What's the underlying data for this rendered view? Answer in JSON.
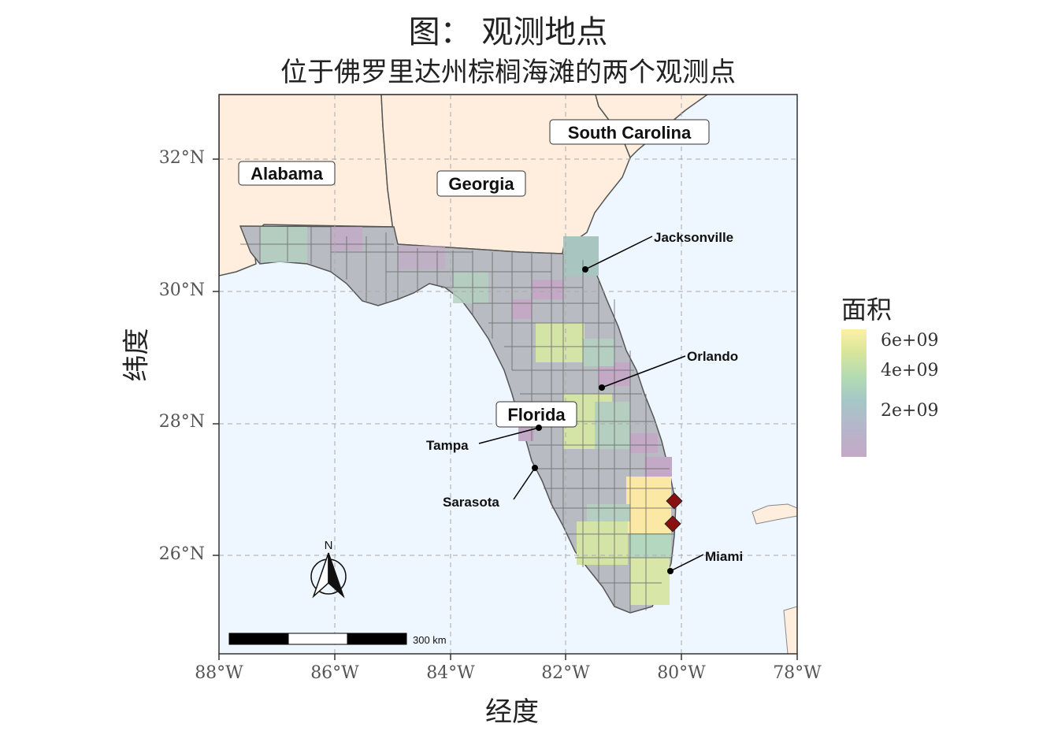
{
  "title": "图：  观测地点",
  "subtitle": "位于佛罗里达州棕榈海滩的两个观测点",
  "axes": {
    "xlabel": "经度",
    "ylabel": "纬度",
    "x_ticks": [
      "88°W",
      "86°W",
      "84°W",
      "82°W",
      "80°W",
      "78°W"
    ],
    "y_ticks": [
      "32°N",
      "30°N",
      "28°N",
      "26°N"
    ]
  },
  "legend": {
    "title": "面积",
    "labels": [
      "6e+09",
      "4e+09",
      "2e+09"
    ]
  },
  "states": [
    "Alabama",
    "Georgia",
    "South Carolina",
    "Florida"
  ],
  "cities": [
    "Jacksonville",
    "Orlando",
    "Tampa",
    "Sarasota",
    "Miami"
  ],
  "north_arrow": "N",
  "scale_bar": "300 km",
  "colors": {
    "ocean": "#eef6ff",
    "land": "#ffeedd",
    "county_border": "#555555",
    "marker": "#8b1010"
  },
  "observation_points": [
    {
      "lon": -80.05,
      "lat": 26.85
    },
    {
      "lon": -80.05,
      "lat": 26.5
    }
  ]
}
